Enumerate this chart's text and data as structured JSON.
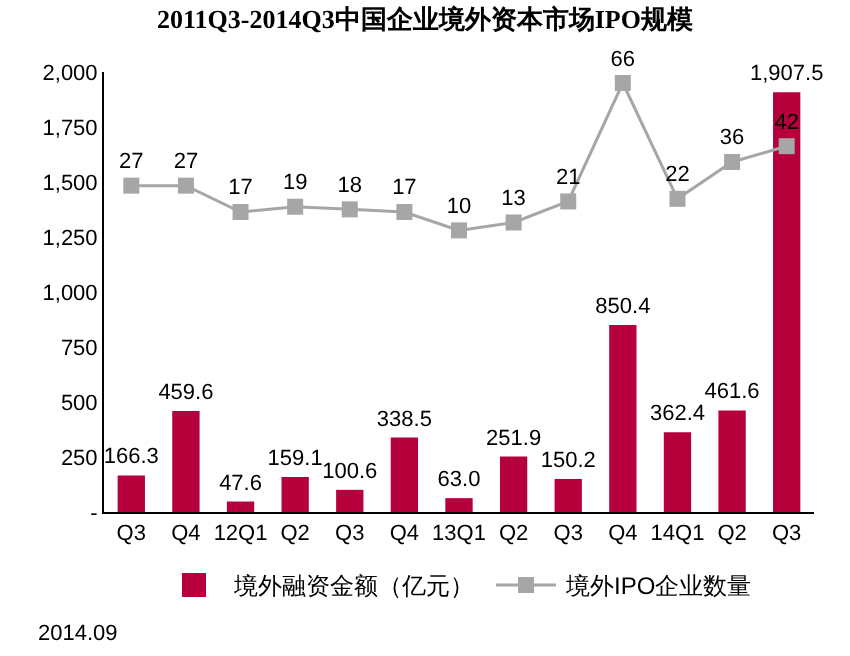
{
  "chart_data": {
    "type": "bar",
    "title": "2011Q3-2014Q3中国企业境外资本市场IPO规模",
    "categories": [
      "Q3",
      "Q4",
      "12Q1",
      "Q2",
      "Q3",
      "Q4",
      "13Q1",
      "Q2",
      "Q3",
      "Q4",
      "14Q1",
      "Q2",
      "Q3"
    ],
    "series": [
      {
        "name": "境外融资金额（亿元）",
        "color": "#b5003c",
        "values": [
          166.3,
          459.6,
          47.6,
          159.1,
          100.6,
          338.5,
          63.0,
          251.9,
          150.2,
          850.4,
          362.4,
          461.6,
          1907.5
        ],
        "value_labels": [
          "166.3",
          "459.6",
          "47.6",
          "159.1",
          "100.6",
          "338.5",
          "63.0",
          "251.9",
          "150.2",
          "850.4",
          "362.4",
          "461.6",
          "1,907.5"
        ]
      },
      {
        "name": "境外IPO企业数量",
        "type": "line",
        "axis": "y2",
        "color": "#a6a6a6",
        "marker": "square",
        "values": [
          27,
          27,
          17,
          19,
          18,
          17,
          10,
          13,
          21,
          66,
          22,
          36,
          42
        ],
        "value_labels": [
          "27",
          "27",
          "17",
          "19",
          "18",
          "17",
          "10",
          "13",
          "21",
          "66",
          "22",
          "36",
          "42"
        ]
      }
    ],
    "ylim": [
      0,
      2000
    ],
    "yticks": [
      {
        "value": 0,
        "label": "-"
      },
      250,
      500,
      750,
      {
        "value": 1000,
        "label": "1,000"
      },
      {
        "value": 1250,
        "label": "1,250"
      },
      {
        "value": 1500,
        "label": "1,500"
      },
      {
        "value": 1750,
        "label": "1,750"
      },
      {
        "value": 2000,
        "label": "2,000"
      }
    ],
    "tick_labels": "xy",
    "grid": false,
    "legend": "bottom",
    "annotations": [
      "2014.09"
    ]
  }
}
